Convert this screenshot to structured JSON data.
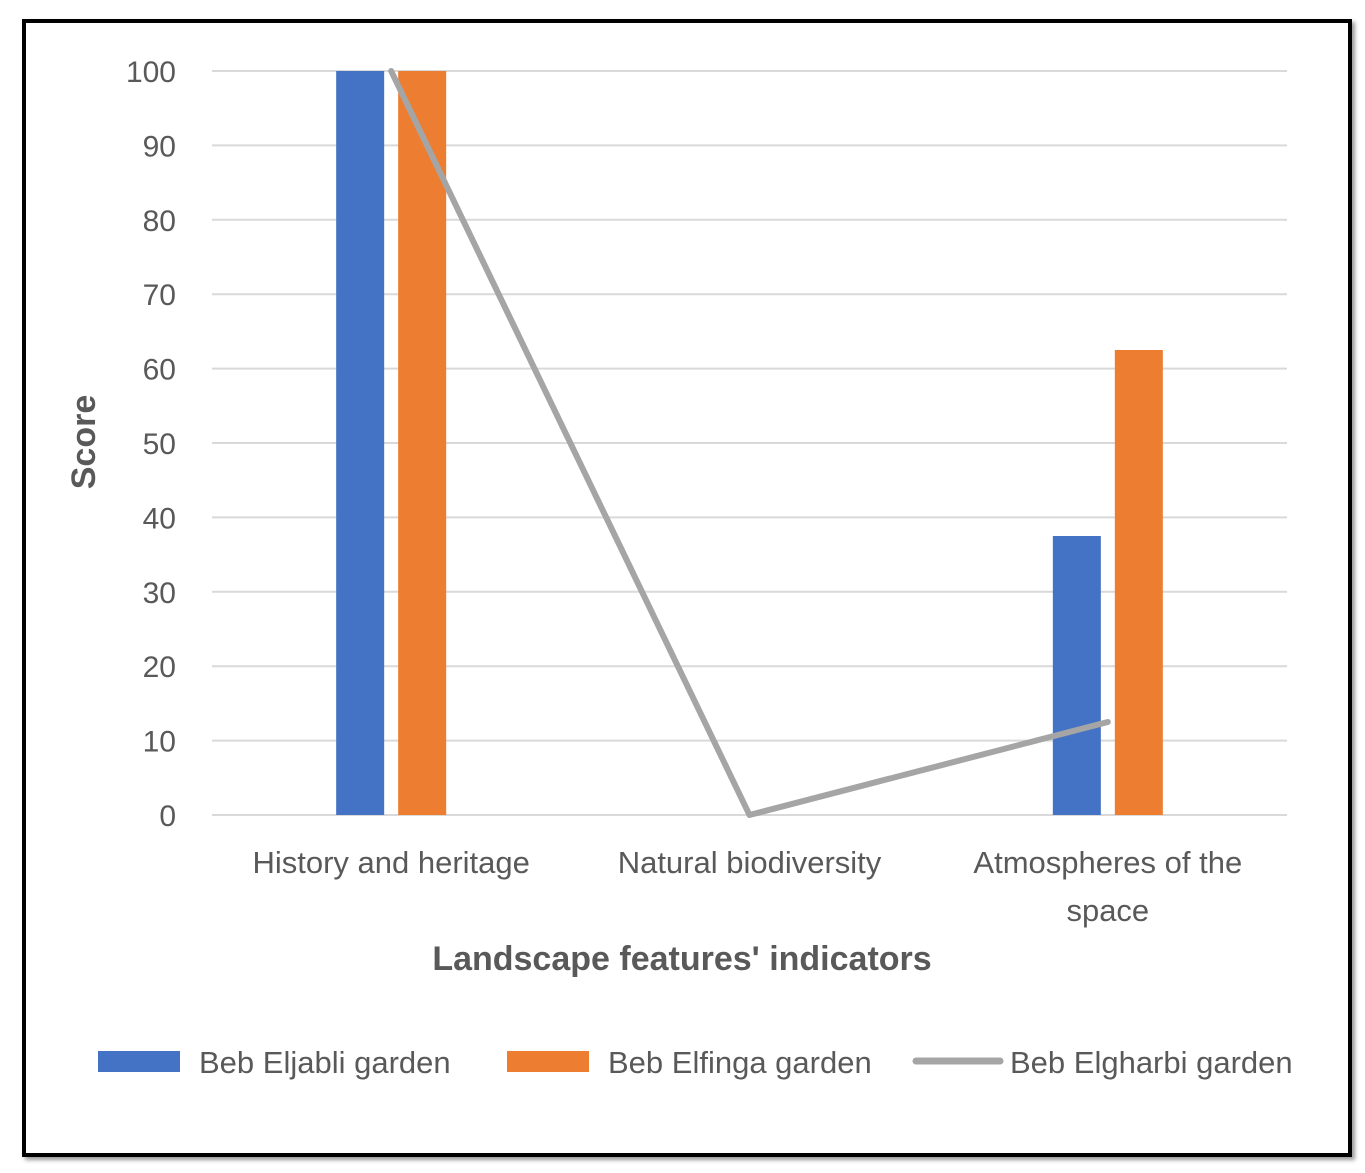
{
  "chart_data": {
    "type": "bar",
    "categories": [
      "History and heritage",
      "Natural biodiversity",
      "Atmospheres of the space"
    ],
    "category_lines": [
      [
        "History and heritage"
      ],
      [
        "Natural biodiversity"
      ],
      [
        "Atmospheres of the",
        "space"
      ]
    ],
    "series": [
      {
        "name": "Beb Eljabli garden",
        "type": "bar",
        "values": [
          100,
          0,
          37.5
        ],
        "color": "#4472c4"
      },
      {
        "name": "Beb Elfinga garden",
        "type": "bar",
        "values": [
          100,
          0,
          62.5
        ],
        "color": "#ed7d31"
      },
      {
        "name": "Beb Elgharbi garden",
        "type": "line",
        "values": [
          100,
          0,
          12.5
        ],
        "color": "#a5a5a5"
      }
    ],
    "title": "",
    "xlabel": "Landscape features' indicators",
    "ylabel": "Score",
    "ylim": [
      0,
      100
    ],
    "yticks": [
      0,
      10,
      20,
      30,
      40,
      50,
      60,
      70,
      80,
      90,
      100
    ],
    "grid": true,
    "legend_position": "bottom"
  }
}
